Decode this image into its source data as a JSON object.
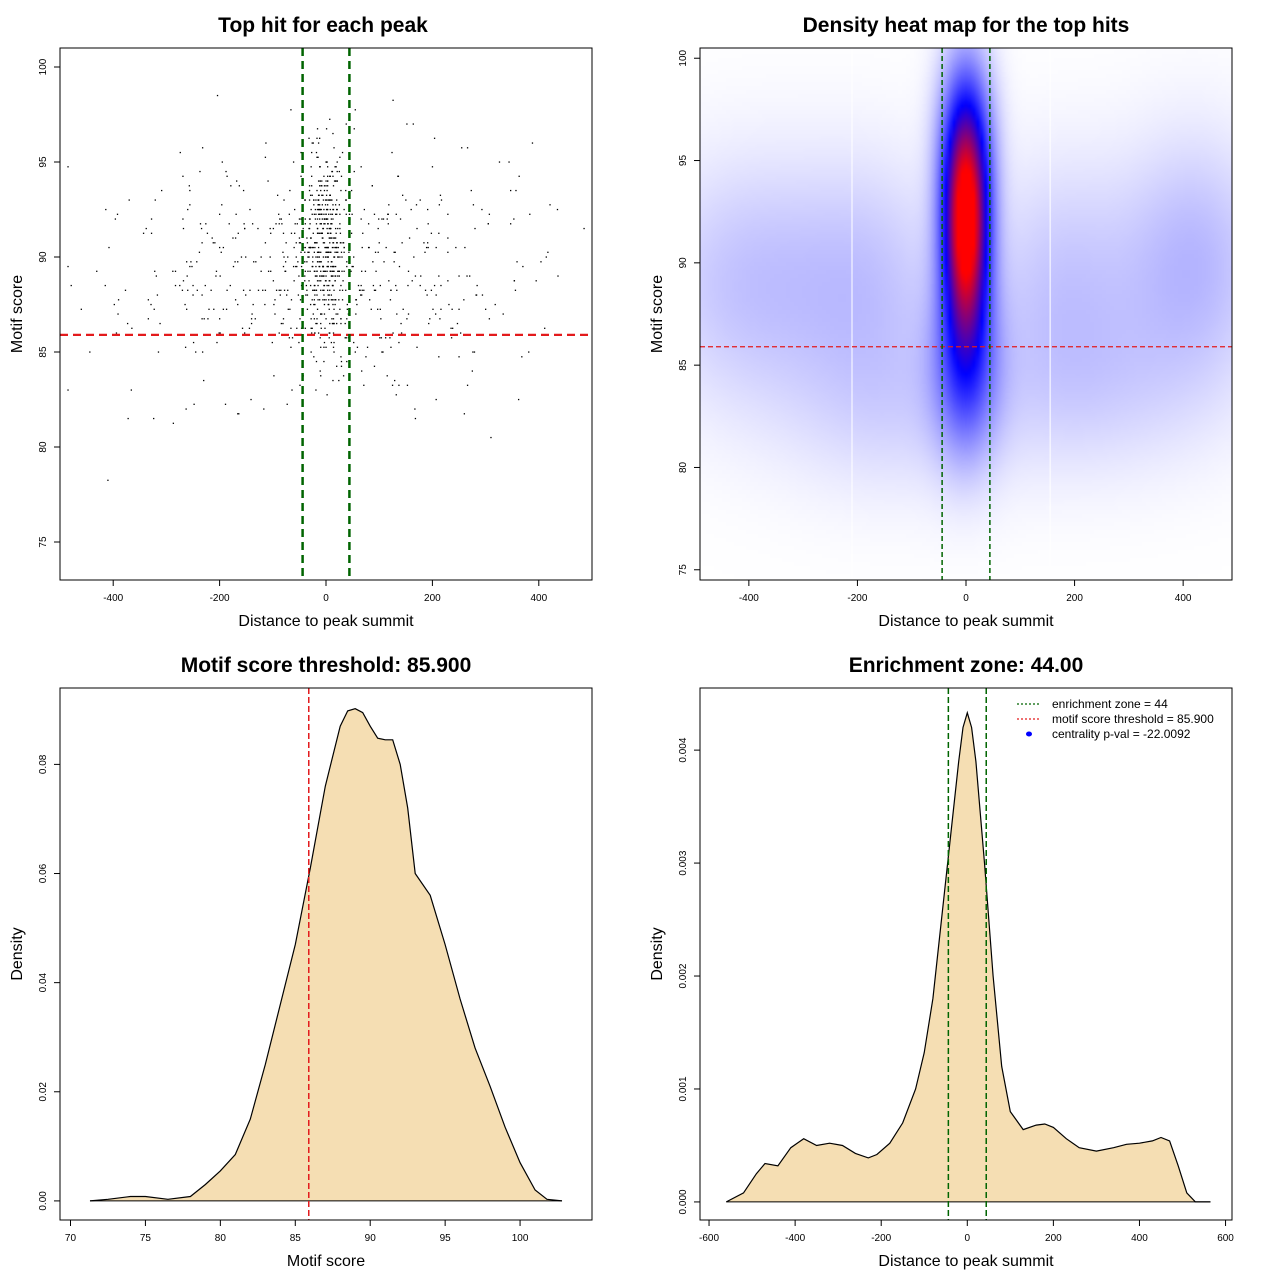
{
  "colors": {
    "threshold_line": "#e31a1c",
    "zone_line": "#006400",
    "density_fill": "#f5deb3",
    "heat_low": "#ffffff",
    "heat_mid": "#0000ff",
    "heat_high": "#ff0000",
    "points": "#000000",
    "legend_marker": "#0000ff"
  },
  "chart_data": [
    {
      "id": "scatter",
      "type": "scatter",
      "title": "Top hit for each peak",
      "xlabel": "Distance to peak summit",
      "ylabel": "Motif score",
      "xlim": [
        -500,
        500
      ],
      "ylim": [
        73,
        101
      ],
      "xticks": [
        "-400",
        "-200",
        "0",
        "200",
        "400"
      ],
      "yticks": [
        "75",
        "80",
        "85",
        "90",
        "95",
        "100"
      ],
      "hline": 85.9,
      "vlines": [
        -44,
        44
      ],
      "approx_point_count": 1000,
      "clusters": [
        {
          "x": 0,
          "x_sd": 32,
          "y": 90.5,
          "y_sd": 3.6,
          "n": 450
        },
        {
          "x": 0,
          "x_sd": 280,
          "y": 89,
          "y_sd": 4.5,
          "n": 550
        }
      ]
    },
    {
      "id": "heatmap",
      "type": "heatmap",
      "title": "Density heat map for the top hits",
      "xlabel": "Distance to peak summit",
      "ylabel": "Motif score",
      "xlim": [
        -490,
        490
      ],
      "ylim": [
        74.5,
        100.5
      ],
      "xticks": [
        "-400",
        "-200",
        "0",
        "200",
        "400"
      ],
      "yticks": [
        "75",
        "80",
        "85",
        "90",
        "95",
        "100"
      ],
      "hline": 85.9,
      "vlines": [
        -44,
        44
      ],
      "white_vlines": [
        -210,
        155
      ],
      "hotspots": [
        {
          "x": 0,
          "y": 91.5,
          "x_sd": 28,
          "y_sd": 3.5,
          "w": 1.0
        },
        {
          "x": 0,
          "y": 96,
          "x_sd": 32,
          "y_sd": 3,
          "w": 0.35
        },
        {
          "x": 0,
          "y": 85,
          "x_sd": 40,
          "y_sd": 3,
          "w": 0.3
        },
        {
          "x": -400,
          "y": 89,
          "x_sd": 120,
          "y_sd": 4,
          "w": 0.09
        },
        {
          "x": -180,
          "y": 89,
          "x_sd": 100,
          "y_sd": 4,
          "w": 0.08
        },
        {
          "x": 180,
          "y": 89,
          "x_sd": 100,
          "y_sd": 4,
          "w": 0.08
        },
        {
          "x": 420,
          "y": 90,
          "x_sd": 90,
          "y_sd": 4,
          "w": 0.11
        },
        {
          "x": -120,
          "y": 83,
          "x_sd": 150,
          "y_sd": 3,
          "w": 0.05
        },
        {
          "x": 250,
          "y": 84,
          "x_sd": 150,
          "y_sd": 3,
          "w": 0.05
        }
      ]
    },
    {
      "id": "score_density",
      "type": "area",
      "title": "Motif score threshold: 85.900",
      "xlabel": "Motif score",
      "ylabel": "Density",
      "xlim": [
        69.3,
        104.8
      ],
      "ylim": [
        -0.0035,
        0.094
      ],
      "xticks": [
        "70",
        "75",
        "80",
        "85",
        "90",
        "95",
        "100"
      ],
      "yticks": [
        "0.00",
        "0.02",
        "0.04",
        "0.06",
        "0.08"
      ],
      "vline": 85.9,
      "x": [
        71.3,
        72.5,
        74.0,
        75.0,
        76.5,
        78.0,
        79.0,
        80.0,
        81.0,
        82.0,
        83.0,
        84.0,
        85.0,
        86.0,
        87.0,
        88.0,
        88.5,
        89.0,
        89.5,
        90.0,
        90.5,
        91.0,
        91.5,
        92.0,
        92.5,
        93.0,
        94.0,
        95.0,
        96.0,
        97.0,
        98.0,
        99.0,
        100.0,
        101.0,
        101.8,
        102.8
      ],
      "y": [
        0.0,
        0.0003,
        0.0008,
        0.0008,
        0.0003,
        0.0008,
        0.003,
        0.0055,
        0.0085,
        0.015,
        0.025,
        0.036,
        0.047,
        0.061,
        0.076,
        0.087,
        0.0898,
        0.0902,
        0.0895,
        0.087,
        0.0848,
        0.0845,
        0.0845,
        0.08,
        0.072,
        0.06,
        0.056,
        0.047,
        0.037,
        0.028,
        0.021,
        0.0135,
        0.007,
        0.002,
        0.0003,
        0.0
      ]
    },
    {
      "id": "distance_density",
      "type": "area",
      "title": "Enrichment zone: 44.00",
      "xlabel": "Distance to peak summit",
      "ylabel": "Density",
      "xlim": [
        -621,
        615
      ],
      "ylim": [
        -0.00016,
        0.00455
      ],
      "xticks": [
        "-600",
        "-400",
        "-200",
        "0",
        "200",
        "400",
        "600"
      ],
      "yticks": [
        "0.000",
        "0.001",
        "0.002",
        "0.003",
        "0.004"
      ],
      "vlines": [
        -44,
        44
      ],
      "x": [
        -560,
        -520,
        -490,
        -470,
        -440,
        -410,
        -380,
        -350,
        -320,
        -290,
        -260,
        -230,
        -210,
        -180,
        -150,
        -120,
        -100,
        -80,
        -60,
        -40,
        -20,
        -10,
        0,
        10,
        20,
        40,
        60,
        80,
        100,
        130,
        160,
        180,
        200,
        230,
        260,
        300,
        340,
        370,
        400,
        430,
        450,
        470,
        490,
        510,
        530,
        565
      ],
      "y": [
        0.0,
        8e-05,
        0.00025,
        0.00034,
        0.00032,
        0.00048,
        0.00056,
        0.0005,
        0.00052,
        0.0005,
        0.00043,
        0.00039,
        0.00042,
        0.00052,
        0.0007,
        0.001,
        0.00132,
        0.0018,
        0.0025,
        0.0032,
        0.0039,
        0.0042,
        0.00433,
        0.0042,
        0.0039,
        0.003,
        0.002,
        0.0012,
        0.0008,
        0.00064,
        0.00068,
        0.00069,
        0.00066,
        0.00056,
        0.00048,
        0.00045,
        0.00048,
        0.00051,
        0.00052,
        0.00054,
        0.00057,
        0.00054,
        0.00032,
        8e-05,
        0.0,
        0.0
      ]
    }
  ],
  "legend": [
    {
      "label": "enrichment zone = 44",
      "kind": "dotted",
      "color": "#006400"
    },
    {
      "label": "motif score threshold = 85.900",
      "kind": "dotted",
      "color": "#e31a1c"
    },
    {
      "label": "centrality p-val = -22.0092",
      "kind": "dot",
      "color": "#0000ff"
    }
  ]
}
